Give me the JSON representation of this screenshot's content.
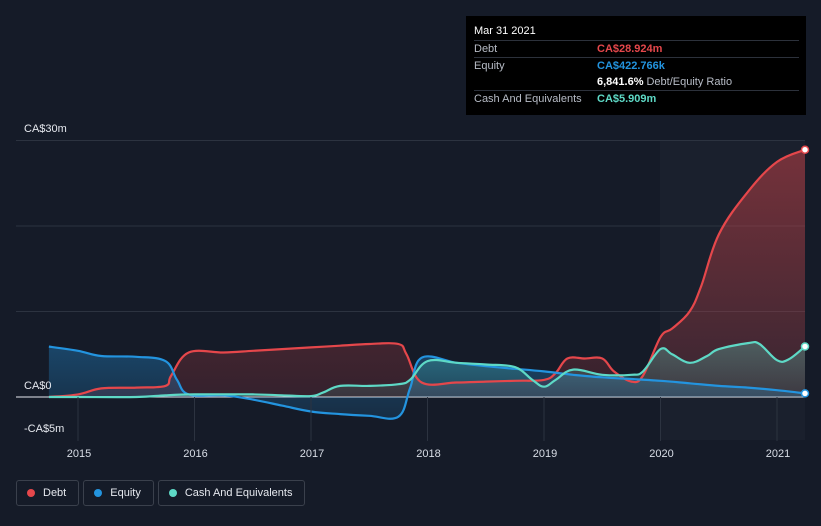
{
  "chart_data": {
    "type": "area",
    "y_unit_labels": {
      "top": "CA$30m",
      "zero": "CA$0",
      "bottom": "-CA$5m"
    },
    "ylim": [
      -5,
      30
    ],
    "xlim": [
      2014.75,
      2021.25
    ],
    "x_ticks": [
      "2015",
      "2016",
      "2017",
      "2018",
      "2019",
      "2020",
      "2021"
    ],
    "grid": true,
    "legend_placement": "bottom-left",
    "series": [
      {
        "name": "Debt",
        "color": "#e5474b",
        "x": [
          2014.75,
          2015.0,
          2015.2,
          2015.5,
          2015.75,
          2015.8,
          2015.95,
          2016.25,
          2016.5,
          2016.75,
          2017.0,
          2017.25,
          2017.5,
          2017.75,
          2017.82,
          2017.95,
          2018.25,
          2018.5,
          2018.75,
          2019.0,
          2019.1,
          2019.2,
          2019.35,
          2019.5,
          2019.6,
          2019.75,
          2019.85,
          2020.0,
          2020.1,
          2020.25,
          2020.35,
          2020.5,
          2020.75,
          2021.0,
          2021.25
        ],
        "values": [
          0.0,
          0.3,
          1.0,
          1.1,
          1.3,
          2.5,
          5.2,
          5.2,
          5.4,
          5.6,
          5.8,
          6.0,
          6.2,
          6.2,
          5.0,
          1.7,
          1.7,
          1.8,
          1.9,
          2.0,
          2.8,
          4.5,
          4.5,
          4.5,
          3.0,
          1.8,
          2.5,
          7.0,
          8.0,
          10.0,
          13.0,
          19.0,
          24.0,
          27.5,
          28.924
        ]
      },
      {
        "name": "Equity",
        "color": "#2394df",
        "x": [
          2014.75,
          2015.0,
          2015.2,
          2015.5,
          2015.75,
          2015.85,
          2015.95,
          2016.25,
          2016.5,
          2016.75,
          2017.0,
          2017.25,
          2017.5,
          2017.75,
          2017.85,
          2017.95,
          2018.25,
          2018.5,
          2018.75,
          2019.0,
          2019.25,
          2019.5,
          2019.75,
          2020.0,
          2020.25,
          2020.5,
          2020.75,
          2021.0,
          2021.25
        ],
        "values": [
          5.9,
          5.4,
          4.8,
          4.7,
          4.2,
          2.0,
          0.3,
          0.2,
          -0.3,
          -1.0,
          -1.7,
          -2.0,
          -2.2,
          -2.3,
          1.0,
          4.6,
          4.0,
          3.6,
          3.3,
          3.0,
          2.6,
          2.3,
          2.1,
          1.9,
          1.6,
          1.3,
          1.1,
          0.8,
          0.423
        ]
      },
      {
        "name": "Cash And Equivalents",
        "color": "#5ed9c6",
        "x": [
          2014.75,
          2015.0,
          2015.5,
          2015.75,
          2016.0,
          2016.5,
          2016.75,
          2017.0,
          2017.1,
          2017.25,
          2017.5,
          2017.75,
          2017.85,
          2018.0,
          2018.25,
          2018.5,
          2018.75,
          2018.9,
          2019.0,
          2019.1,
          2019.25,
          2019.5,
          2019.75,
          2019.85,
          2020.0,
          2020.1,
          2020.25,
          2020.4,
          2020.5,
          2020.75,
          2020.85,
          2021.0,
          2021.1,
          2021.25
        ],
        "values": [
          0.0,
          0.0,
          0.0,
          0.2,
          0.3,
          0.3,
          0.2,
          0.1,
          0.5,
          1.3,
          1.3,
          1.5,
          2.0,
          4.2,
          4.0,
          3.8,
          3.5,
          2.0,
          1.2,
          2.0,
          3.2,
          2.6,
          2.6,
          3.0,
          5.6,
          5.0,
          4.0,
          4.8,
          5.6,
          6.3,
          6.2,
          4.3,
          4.4,
          5.909
        ]
      }
    ]
  },
  "tooltip": {
    "date": "Mar 31 2021",
    "debt_label": "Debt",
    "debt_value": "CA$28.924m",
    "equity_label": "Equity",
    "equity_value": "CA$422.766k",
    "ratio_value": "6,841.6%",
    "ratio_label": "Debt/Equity Ratio",
    "cash_label": "Cash And Equivalents",
    "cash_value": "CA$5.909m"
  },
  "legend": {
    "debt": "Debt",
    "equity": "Equity",
    "cash": "Cash And Equivalents"
  },
  "colors": {
    "debt": "#e5474b",
    "equity": "#2394df",
    "cash": "#5ed9c6",
    "background": "#151b28"
  }
}
